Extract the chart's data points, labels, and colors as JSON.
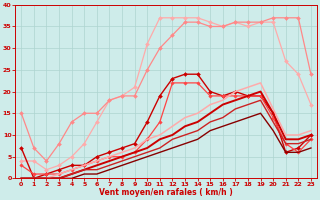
{
  "background_color": "#ceecea",
  "grid_color": "#aed4d0",
  "text_color": "#cc0000",
  "xlabel": "Vent moyen/en rafales ( km/h )",
  "xlim": [
    -0.5,
    23.5
  ],
  "ylim": [
    0,
    40
  ],
  "yticks": [
    0,
    5,
    10,
    15,
    20,
    25,
    30,
    35,
    40
  ],
  "xticks": [
    0,
    1,
    2,
    3,
    4,
    5,
    6,
    7,
    8,
    9,
    10,
    11,
    12,
    13,
    14,
    15,
    16,
    17,
    18,
    19,
    20,
    21,
    22,
    23
  ],
  "series": [
    {
      "x": [
        0,
        1,
        2,
        3,
        4,
        5,
        6,
        7,
        8,
        9,
        10,
        11,
        12,
        13,
        14,
        15,
        16,
        17,
        18,
        19,
        20,
        21,
        22,
        23
      ],
      "y": [
        4,
        4,
        2,
        3,
        5,
        8,
        13,
        18,
        19,
        21,
        31,
        37,
        37,
        37,
        37,
        36,
        35,
        36,
        35,
        36,
        36,
        27,
        24,
        17
      ],
      "color": "#ffaaaa",
      "lw": 0.9,
      "marker": "D",
      "ms": 2.0
    },
    {
      "x": [
        0,
        1,
        2,
        3,
        4,
        5,
        6,
        7,
        8,
        9,
        10,
        11,
        12,
        13,
        14,
        15,
        16,
        17,
        18,
        19,
        20,
        21,
        22,
        23
      ],
      "y": [
        15,
        7,
        4,
        8,
        13,
        15,
        15,
        18,
        19,
        19,
        25,
        30,
        33,
        36,
        36,
        35,
        35,
        36,
        36,
        36,
        37,
        37,
        37,
        24
      ],
      "color": "#ff8888",
      "lw": 0.9,
      "marker": "D",
      "ms": 2.0
    },
    {
      "x": [
        0,
        1,
        2,
        3,
        4,
        5,
        6,
        7,
        8,
        9,
        10,
        11,
        12,
        13,
        14,
        15,
        16,
        17,
        18,
        19,
        20,
        21,
        22,
        23
      ],
      "y": [
        7,
        0,
        1,
        2,
        3,
        3,
        5,
        6,
        7,
        8,
        13,
        19,
        23,
        24,
        24,
        20,
        19,
        20,
        19,
        19,
        15,
        6,
        7,
        10
      ],
      "color": "#cc0000",
      "lw": 1.0,
      "marker": "D",
      "ms": 2.0
    },
    {
      "x": [
        0,
        1,
        2,
        3,
        4,
        5,
        6,
        7,
        8,
        9,
        10,
        11,
        12,
        13,
        14,
        15,
        16,
        17,
        18,
        19,
        20,
        21,
        22,
        23
      ],
      "y": [
        3,
        1,
        1,
        1,
        2,
        3,
        4,
        5,
        5,
        6,
        9,
        13,
        22,
        22,
        22,
        19,
        19,
        19,
        19,
        19,
        14,
        8,
        6,
        9
      ],
      "color": "#ff4444",
      "lw": 0.9,
      "marker": "D",
      "ms": 1.8
    },
    {
      "x": [
        0,
        1,
        2,
        3,
        4,
        5,
        6,
        7,
        8,
        9,
        10,
        11,
        12,
        13,
        14,
        15,
        16,
        17,
        18,
        19,
        20,
        21,
        22,
        23
      ],
      "y": [
        0,
        0,
        0,
        0,
        1,
        2,
        3,
        4,
        5,
        6,
        7,
        9,
        10,
        12,
        13,
        15,
        17,
        18,
        19,
        20,
        15,
        9,
        9,
        10
      ],
      "color": "#cc0000",
      "lw": 1.4,
      "marker": null,
      "ms": 0
    },
    {
      "x": [
        0,
        1,
        2,
        3,
        4,
        5,
        6,
        7,
        8,
        9,
        10,
        11,
        12,
        13,
        14,
        15,
        16,
        17,
        18,
        19,
        20,
        21,
        22,
        23
      ],
      "y": [
        0,
        0,
        0,
        1,
        2,
        3,
        4,
        5,
        6,
        7,
        9,
        10,
        12,
        14,
        15,
        17,
        18,
        20,
        21,
        22,
        16,
        10,
        10,
        11
      ],
      "color": "#ffaaaa",
      "lw": 1.1,
      "marker": null,
      "ms": 0
    },
    {
      "x": [
        0,
        1,
        2,
        3,
        4,
        5,
        6,
        7,
        8,
        9,
        10,
        11,
        12,
        13,
        14,
        15,
        16,
        17,
        18,
        19,
        20,
        21,
        22,
        23
      ],
      "y": [
        0,
        0,
        0,
        0,
        1,
        2,
        2,
        3,
        4,
        5,
        6,
        7,
        9,
        10,
        11,
        13,
        14,
        16,
        17,
        18,
        13,
        8,
        8,
        9
      ],
      "color": "#cc2222",
      "lw": 1.0,
      "marker": null,
      "ms": 0
    },
    {
      "x": [
        0,
        1,
        2,
        3,
        4,
        5,
        6,
        7,
        8,
        9,
        10,
        11,
        12,
        13,
        14,
        15,
        16,
        17,
        18,
        19,
        20,
        21,
        22,
        23
      ],
      "y": [
        0,
        0,
        0,
        0,
        0,
        1,
        1,
        2,
        3,
        4,
        5,
        6,
        7,
        8,
        9,
        11,
        12,
        13,
        14,
        15,
        11,
        6,
        6,
        7
      ],
      "color": "#880000",
      "lw": 1.0,
      "marker": null,
      "ms": 0
    }
  ]
}
